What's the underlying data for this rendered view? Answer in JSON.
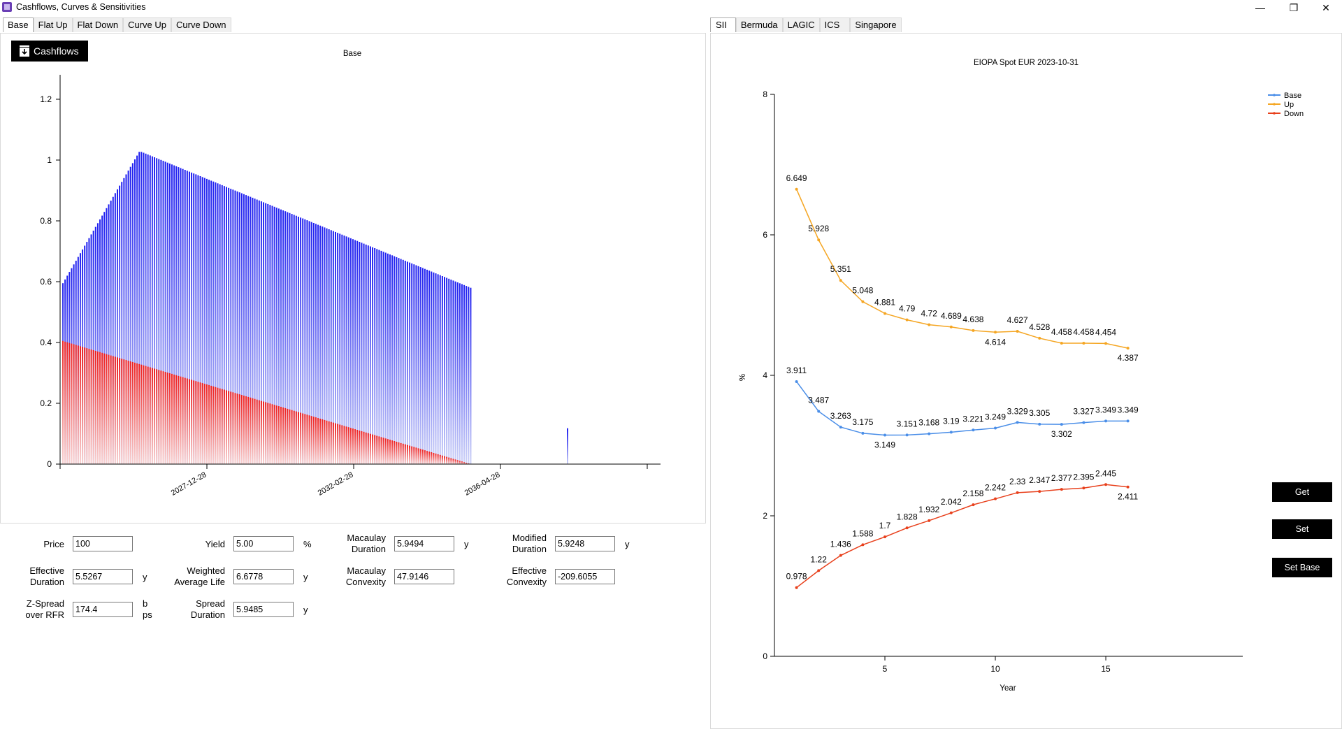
{
  "window": {
    "title": "Cashflows, Curves & Sensitivities"
  },
  "left_tabs": [
    "Base",
    "Flat Up",
    "Flat Down",
    "Curve Up",
    "Curve Down"
  ],
  "right_tabs": [
    "SII",
    "Bermuda",
    "LAGIC",
    "ICS",
    "Singapore"
  ],
  "cashflow_chart": {
    "export_label": "Cashflows",
    "title": "Base",
    "x_ticks": [
      "2027-12-28",
      "2032-02-28",
      "2036-04-28"
    ],
    "y_ticks": [
      "0",
      "0.2",
      "0.4",
      "0.6",
      "0.8",
      "1",
      "1.2"
    ],
    "colors": {
      "principal": "#1e1ef0",
      "interest": "#ee1c1c"
    }
  },
  "metrics": {
    "price": {
      "label": "Price",
      "value": "100",
      "unit": ""
    },
    "yield": {
      "label": "Yield",
      "value": "5.00",
      "unit": "%"
    },
    "macaulay_duration": {
      "label_1": "Macaulay",
      "label_2": "Duration",
      "value": "5.9494",
      "unit": "y"
    },
    "modified_duration": {
      "label_1": "Modified",
      "label_2": "Duration",
      "value": "5.9248",
      "unit": "y"
    },
    "effective_duration": {
      "label_1": "Effective",
      "label_2": "Duration",
      "value": "5.5267",
      "unit": "y"
    },
    "weighted_average_life": {
      "label_1": "Weighted",
      "label_2": "Average Life",
      "value": "6.6778",
      "unit": "y"
    },
    "macaulay_convexity": {
      "label_1": "Macaulay",
      "label_2": "Convexity",
      "value": "47.9146"
    },
    "effective_convexity": {
      "label_1": "Effective",
      "label_2": "Convexity",
      "value": "-209.6055"
    },
    "z_spread": {
      "label_1": "Z-Spread",
      "label_2": "over RFR",
      "value": "174.4",
      "unit_1": "b",
      "unit_2": "ps"
    },
    "spread_duration": {
      "label_1": "Spread",
      "label_2": "Duration",
      "value": "5.9485",
      "unit": "y"
    }
  },
  "buttons": {
    "get": "Get",
    "set": "Set",
    "set_base": "Set Base"
  },
  "chart_data": {
    "type": "line",
    "title": "EIOPA Spot EUR 2023-10-31",
    "xlabel": "Year",
    "ylabel": "%",
    "xlim": [
      0,
      21.2
    ],
    "ylim": [
      0,
      8
    ],
    "x_ticks": [
      5,
      10,
      15
    ],
    "y_ticks": [
      0,
      2,
      4,
      6,
      8
    ],
    "x": [
      1,
      2,
      3,
      4,
      5,
      6,
      7,
      8,
      9,
      10,
      11,
      12,
      13,
      14,
      15,
      16
    ],
    "series": [
      {
        "name": "Base",
        "color": "#4a8ee8",
        "values": [
          3.911,
          3.487,
          3.263,
          3.175,
          3.149,
          3.151,
          3.168,
          3.19,
          3.221,
          3.249,
          3.329,
          3.305,
          3.302,
          3.327,
          3.349,
          3.349
        ]
      },
      {
        "name": "Up",
        "color": "#f5a623",
        "values": [
          6.649,
          5.928,
          5.351,
          5.048,
          4.881,
          4.79,
          4.72,
          4.689,
          4.638,
          4.614,
          4.627,
          4.528,
          4.458,
          4.458,
          4.454,
          4.387
        ]
      },
      {
        "name": "Down",
        "color": "#e8401c",
        "values": [
          0.978,
          1.22,
          1.436,
          1.588,
          1.7,
          1.828,
          1.932,
          2.042,
          2.158,
          2.242,
          2.33,
          2.347,
          2.377,
          2.395,
          2.445,
          2.411
        ]
      }
    ]
  }
}
